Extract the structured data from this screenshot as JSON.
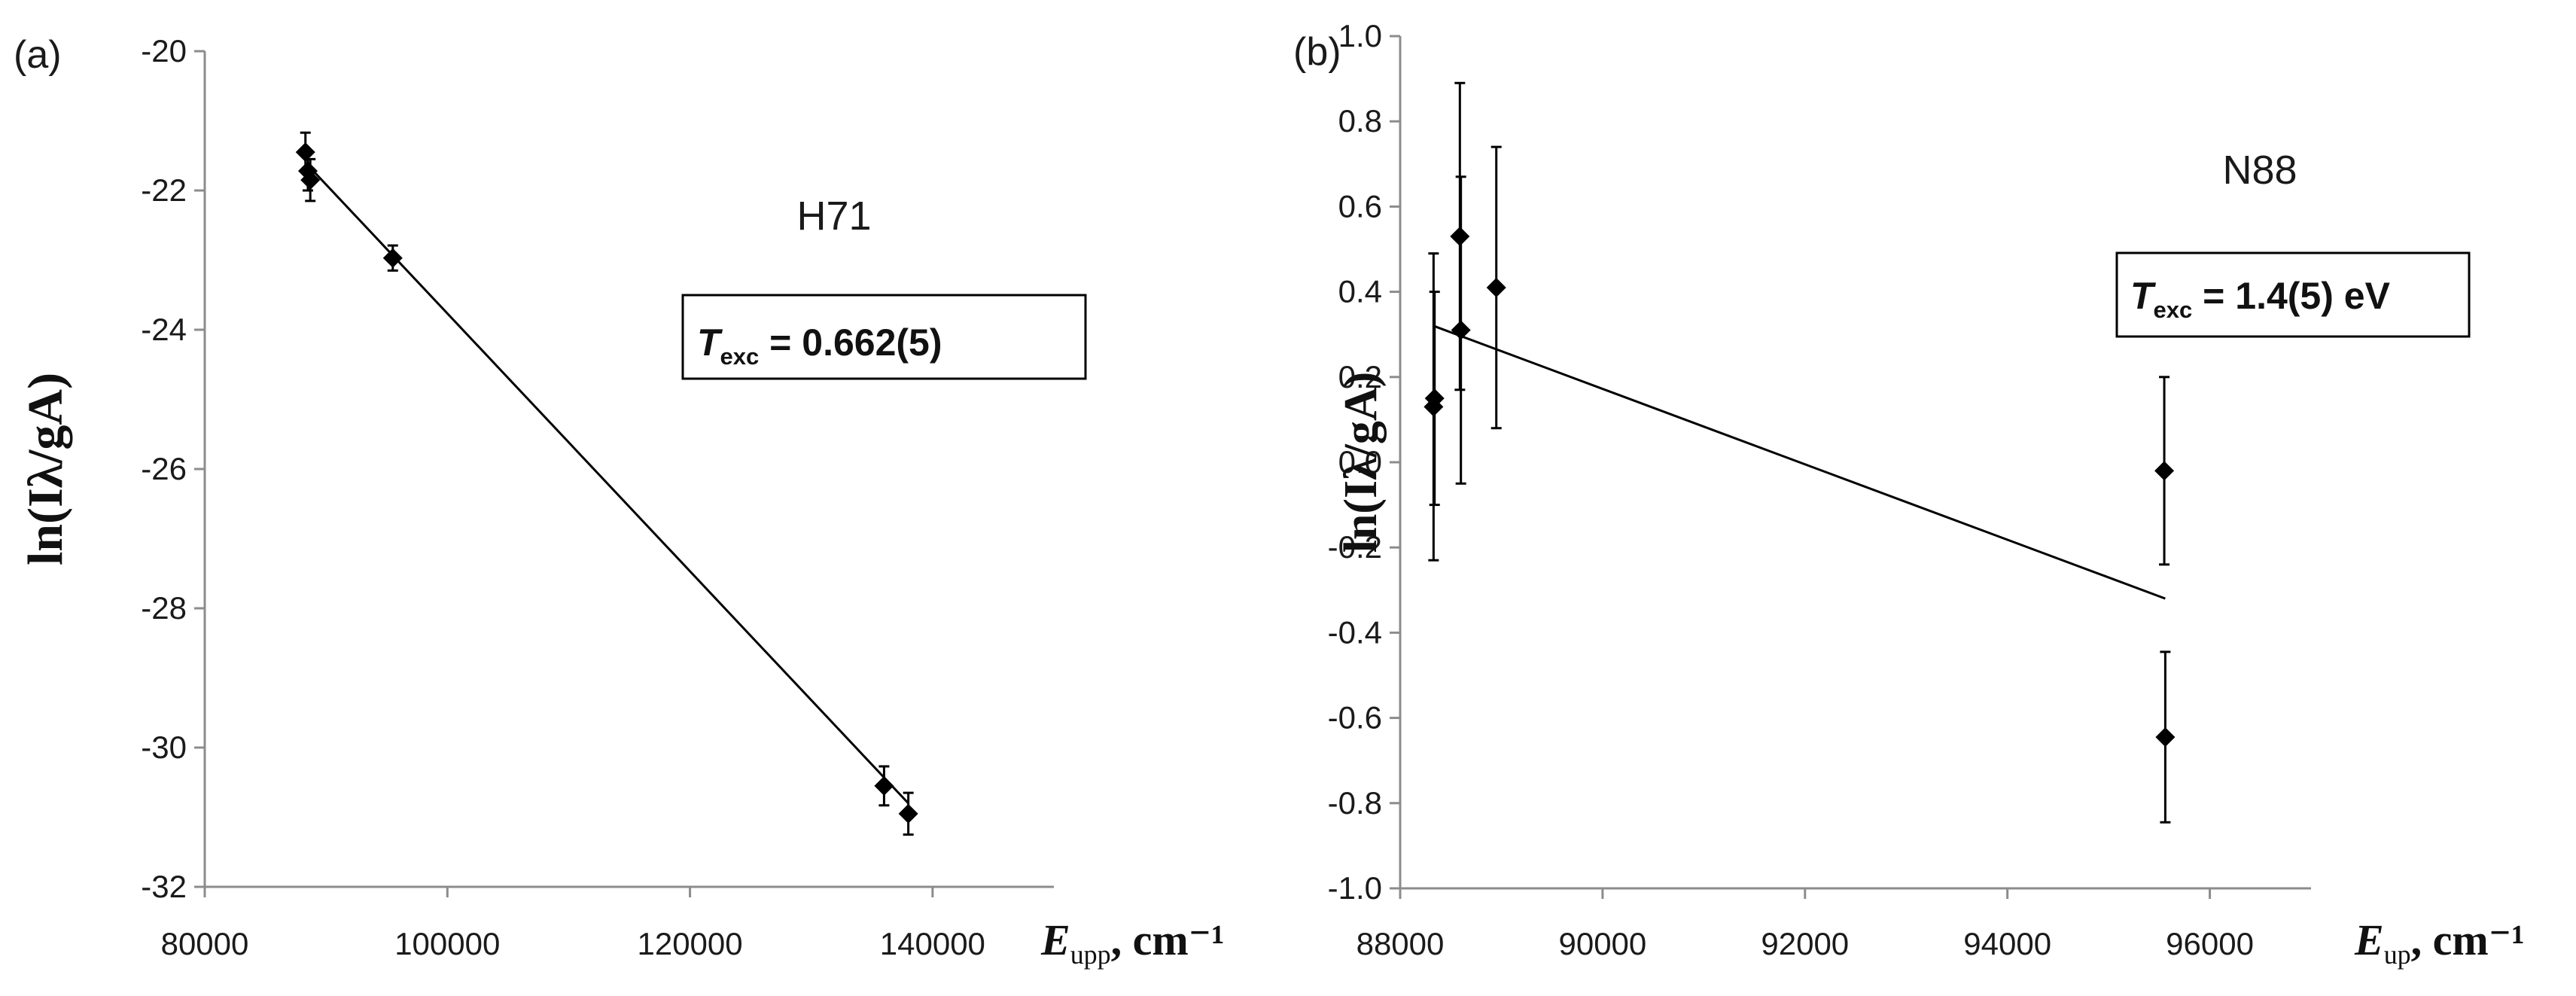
{
  "chart_data": [
    {
      "panel_label": "(a)",
      "type": "scatter",
      "series_name": "H71",
      "annotation": {
        "symbol": "T",
        "subscript": "exc",
        "text": " = 0.662(5)"
      },
      "xlabel": {
        "symbol": "E",
        "subscript": "upp",
        "units": ", cm⁻¹"
      },
      "ylabel": "ln(Iλ/gA)",
      "xlim": [
        80000,
        150000
      ],
      "ylim": [
        -32,
        -20
      ],
      "xticks": [
        80000,
        100000,
        120000,
        140000
      ],
      "xtick_labels": [
        "80000",
        "100000",
        "120000",
        "140000"
      ],
      "yticks": [
        -32,
        -30,
        -28,
        -26,
        -24,
        -22,
        -20
      ],
      "ytick_labels": [
        "-32",
        "-30",
        "-28",
        "-26",
        "-24",
        "-22",
        "-20"
      ],
      "points": [
        {
          "x": 88300,
          "y": -21.45,
          "err": 0.28
        },
        {
          "x": 88500,
          "y": -21.72,
          "err": 0.28
        },
        {
          "x": 88700,
          "y": -21.85,
          "err": 0.3
        },
        {
          "x": 95500,
          "y": -22.97,
          "err": 0.18
        },
        {
          "x": 136000,
          "y": -30.55,
          "err": 0.28
        },
        {
          "x": 138000,
          "y": -30.95,
          "err": 0.3
        }
      ],
      "fit_line": {
        "x": [
          88300,
          138000
        ],
        "y": [
          -21.6,
          -30.8
        ]
      }
    },
    {
      "panel_label": "(b)",
      "type": "scatter",
      "series_name": "N88",
      "annotation": {
        "symbol": "T",
        "subscript": "exc",
        "text": " = 1.4(5) eV"
      },
      "xlabel": {
        "symbol": "E",
        "subscript": "up",
        "units": ", cm⁻¹"
      },
      "ylabel": "ln(Iλ/gA)",
      "xlim": [
        88000,
        97000
      ],
      "ylim": [
        -1.0,
        1.0
      ],
      "xticks": [
        88000,
        90000,
        92000,
        94000,
        96000
      ],
      "xtick_labels": [
        "88000",
        "90000",
        "92000",
        "94000",
        "96000"
      ],
      "yticks": [
        -1.0,
        -0.8,
        -0.6,
        -0.4,
        -0.2,
        0.0,
        0.2,
        0.4,
        0.6,
        0.8,
        1.0
      ],
      "ytick_labels": [
        "-1.0",
        "-0.8",
        "-0.6",
        "-0.4",
        "-0.2",
        "0.0",
        "0.2",
        "0.4",
        "0.6",
        "0.8",
        "1.0"
      ],
      "points": [
        {
          "x": 88330,
          "y": 0.13,
          "err": 0.36
        },
        {
          "x": 88340,
          "y": 0.15,
          "err": 0.25
        },
        {
          "x": 88590,
          "y": 0.53,
          "err": 0.36
        },
        {
          "x": 88600,
          "y": 0.31,
          "err": 0.36
        },
        {
          "x": 88950,
          "y": 0.41,
          "err": 0.33
        },
        {
          "x": 95550,
          "y": -0.02,
          "err": 0.22
        },
        {
          "x": 95560,
          "y": -0.645,
          "err": 0.2
        }
      ],
      "fit_line": {
        "x": [
          88330,
          95560
        ],
        "y": [
          0.32,
          -0.32
        ]
      }
    }
  ]
}
